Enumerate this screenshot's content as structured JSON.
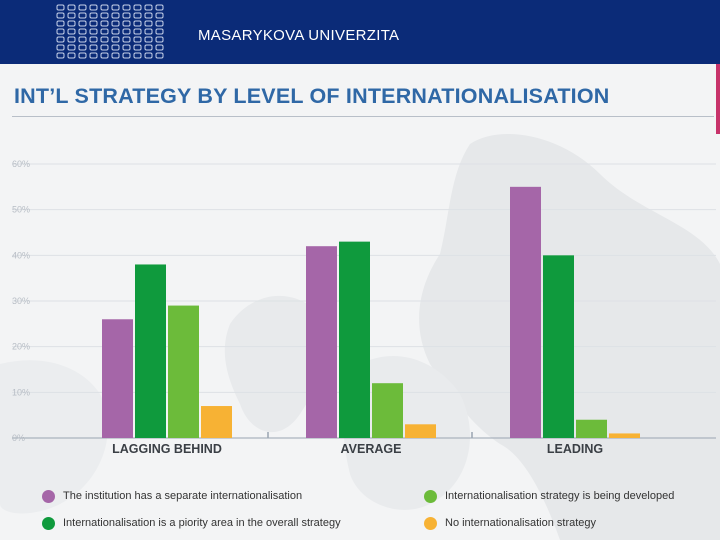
{
  "header": {
    "university": "MASARYKOVA UNIVERZITA"
  },
  "colors": {
    "header_bg": "#0b2b78",
    "title": "#2f68a6",
    "purple": "#a566a8",
    "dark_green": "#0f9a3d",
    "light_green": "#6cbb3a",
    "orange": "#f7b234"
  },
  "chart_data": {
    "type": "bar",
    "title": "INT’L STRATEGY BY LEVEL OF INTERNATIONALISATION",
    "categories": [
      "LAGGING BEHIND",
      "AVERAGE",
      "LEADING"
    ],
    "y_ticks": [
      "0%",
      "10%",
      "20%",
      "30%",
      "40%",
      "50%",
      "60%"
    ],
    "ylim": [
      0,
      60
    ],
    "unit": "%",
    "grid": true,
    "legend_position": "bottom",
    "series": [
      {
        "name": "The institution has a separate internationalisation",
        "color": "#a566a8",
        "values": [
          26,
          42,
          55
        ]
      },
      {
        "name": "Internationalisation is a piority area in the overall strategy",
        "color": "#0f9a3d",
        "values": [
          38,
          43,
          40
        ]
      },
      {
        "name": "Internationalisation strategy is being developed",
        "color": "#6cbb3a",
        "values": [
          29,
          12,
          4
        ]
      },
      {
        "name": "No internationalisation strategy",
        "color": "#f7b234",
        "values": [
          7,
          3,
          1
        ]
      }
    ]
  }
}
